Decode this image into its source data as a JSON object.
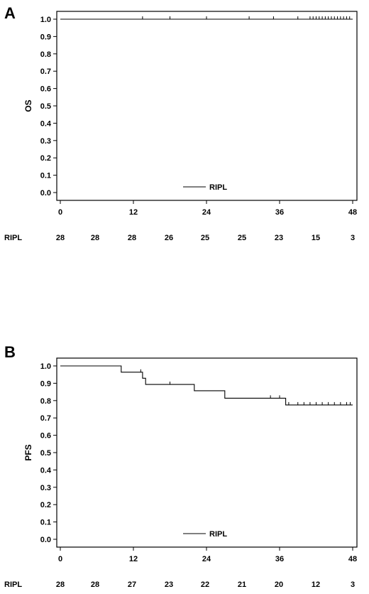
{
  "chart_data": [
    {
      "type": "line",
      "panel": "A",
      "ylabel": "OS",
      "ylim": [
        0,
        1.0
      ],
      "yticks": [
        "0.0",
        "0.1",
        "0.2",
        "0.3",
        "0.4",
        "0.5",
        "0.6",
        "0.7",
        "0.8",
        "0.9",
        "1.0"
      ],
      "xlim": [
        0,
        48
      ],
      "xticks": [
        "0",
        "12",
        "24",
        "36",
        "48"
      ],
      "series": [
        {
          "name": "RIPL",
          "step": [
            [
              0,
              1.0
            ],
            [
              48,
              1.0
            ]
          ],
          "censored": [
            [
              13.5,
              1.0
            ],
            [
              18,
              1.0
            ],
            [
              24,
              1.0
            ],
            [
              31,
              1.0
            ],
            [
              35,
              1.0
            ],
            [
              39,
              1.0
            ],
            [
              41,
              1.0
            ],
            [
              41.5,
              1.0
            ],
            [
              42,
              1.0
            ],
            [
              42.5,
              1.0
            ],
            [
              43,
              1.0
            ],
            [
              43.5,
              1.0
            ],
            [
              44,
              1.0
            ],
            [
              44.5,
              1.0
            ],
            [
              45,
              1.0
            ],
            [
              45.5,
              1.0
            ],
            [
              46,
              1.0
            ],
            [
              46.5,
              1.0
            ],
            [
              47,
              1.0
            ],
            [
              47.5,
              1.0
            ]
          ]
        }
      ],
      "legend": {
        "label": "RIPL",
        "position": "bottom-center"
      },
      "risk_table": {
        "label": "RIPL",
        "values": [
          "28",
          "28",
          "28",
          "26",
          "25",
          "25",
          "23",
          "15",
          "3"
        ]
      }
    },
    {
      "type": "line",
      "panel": "B",
      "ylabel": "PFS",
      "ylim": [
        0,
        1.0
      ],
      "yticks": [
        "0.0",
        "0.1",
        "0.2",
        "0.3",
        "0.4",
        "0.5",
        "0.6",
        "0.7",
        "0.8",
        "0.9",
        "1.0"
      ],
      "xlim": [
        0,
        48
      ],
      "xticks": [
        "0",
        "12",
        "24",
        "36",
        "48"
      ],
      "series": [
        {
          "name": "RIPL",
          "step": [
            [
              0,
              1.0
            ],
            [
              10,
              1.0
            ],
            [
              10,
              0.964
            ],
            [
              13.5,
              0.964
            ],
            [
              13.5,
              0.929
            ],
            [
              14,
              0.929
            ],
            [
              14,
              0.893
            ],
            [
              22,
              0.893
            ],
            [
              22,
              0.857
            ],
            [
              27,
              0.857
            ],
            [
              27,
              0.814
            ],
            [
              37,
              0.814
            ],
            [
              37,
              0.775
            ],
            [
              48,
              0.775
            ]
          ],
          "censored": [
            [
              13.2,
              0.964
            ],
            [
              18,
              0.893
            ],
            [
              34.5,
              0.814
            ],
            [
              36,
              0.814
            ],
            [
              37.5,
              0.775
            ],
            [
              39,
              0.775
            ],
            [
              40,
              0.775
            ],
            [
              41,
              0.775
            ],
            [
              42,
              0.775
            ],
            [
              43,
              0.775
            ],
            [
              44,
              0.775
            ],
            [
              45,
              0.775
            ],
            [
              46,
              0.775
            ],
            [
              47,
              0.775
            ],
            [
              47.6,
              0.775
            ]
          ]
        }
      ],
      "legend": {
        "label": "RIPL",
        "position": "bottom-center"
      },
      "risk_table": {
        "label": "RIPL",
        "values": [
          "28",
          "28",
          "27",
          "23",
          "22",
          "21",
          "20",
          "12",
          "3"
        ]
      }
    }
  ]
}
